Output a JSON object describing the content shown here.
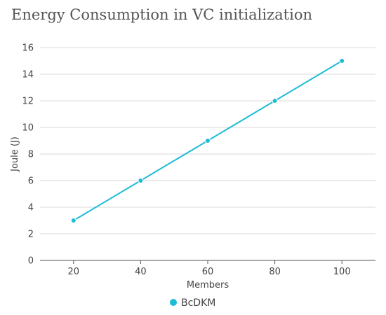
{
  "chart_data": {
    "type": "line",
    "title": "Energy Consumption in VC initialization",
    "xlabel": "Members",
    "ylabel": "Joule (J)",
    "x": [
      20,
      40,
      60,
      80,
      100
    ],
    "x_ticks": [
      "20",
      "40",
      "60",
      "80",
      "100"
    ],
    "y_ticks": [
      "0",
      "2",
      "4",
      "6",
      "8",
      "10",
      "12",
      "14",
      "16"
    ],
    "xlim": [
      10,
      110
    ],
    "ylim": [
      0,
      16
    ],
    "grid": true,
    "legend_position": "bottom-center",
    "series": [
      {
        "name": "BcDKM",
        "color": "#1ebcd6",
        "values": [
          3,
          6,
          9,
          12,
          15
        ]
      }
    ]
  }
}
